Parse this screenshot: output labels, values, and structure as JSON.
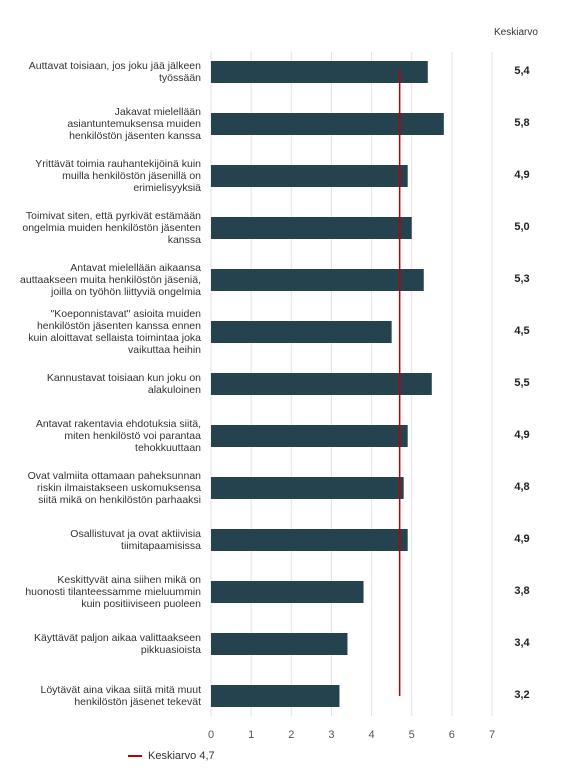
{
  "column_header": "Keskiarvo",
  "legend": {
    "label": "Keskiarvo 4,7",
    "color": "#c00000"
  },
  "colors": {
    "bar": "#24434f",
    "mean_line": "#c00000",
    "grid": "#e3e3e3"
  },
  "chart_data": {
    "type": "bar",
    "orientation": "horizontal",
    "categories": [
      "Auttavat toisiaan, jos joku jää jälkeen työssään",
      "Jakavat mielellään asiantuntemuksensa muiden henkilöstön jäsenten kanssa",
      "Yrittävät toimia rauhantekijöinä kuin muilla henkilöstön jäsenillä on erimielisyyksiä",
      "Toimivat siten, että pyrkivät estämään ongelmia muiden henkilöstön jäsenten kanssa",
      "Antavat mielellään aikaansa auttaakseen muita henkilöstön jäseniä, joilla on työhön liittyviä ongelmia",
      "\"Koeponnistavat\" asioita muiden henkilöstön jäsenten kanssa ennen kuin aloittavat sellaista toimintaa joka vaikuttaa heihin",
      "Kannustavat toisiaan kun joku on alakuloinen",
      "Antavat rakentavia ehdotuksia siitä, miten henkilöstö voi parantaa tehokkuuttaan",
      "Ovat valmiita ottamaan paheksunnan riskin ilmaistakseen uskomuksensa siitä mikä on henkilöstön parhaaksi",
      "Osallistuvat ja ovat aktiivisia tiimitapaamisissa",
      "Keskittyvät aina siihen mikä on huonosti tilanteessamme mieluummin kuin positiiviseen puoleen",
      "Käyttävät paljon aikaa valittaakseen pikkuasioista",
      "Löytävät aina vikaa siitä mitä muut henkilöstön jäsenet tekevät"
    ],
    "values": [
      5.4,
      5.8,
      4.9,
      5.0,
      5.3,
      4.5,
      5.5,
      4.9,
      4.8,
      4.9,
      3.8,
      3.4,
      3.2
    ],
    "value_labels": [
      "5,4",
      "5,8",
      "4,9",
      "5,0",
      "5,3",
      "4,5",
      "5,5",
      "4,9",
      "4,8",
      "4,9",
      "3,8",
      "3,4",
      "3,2"
    ],
    "xlim": [
      0,
      7
    ],
    "xticks": [
      0,
      1,
      2,
      3,
      4,
      5,
      6,
      7
    ],
    "mean_line": {
      "value": 4.7,
      "label": "Keskiarvo 4,7"
    },
    "grid": true
  }
}
